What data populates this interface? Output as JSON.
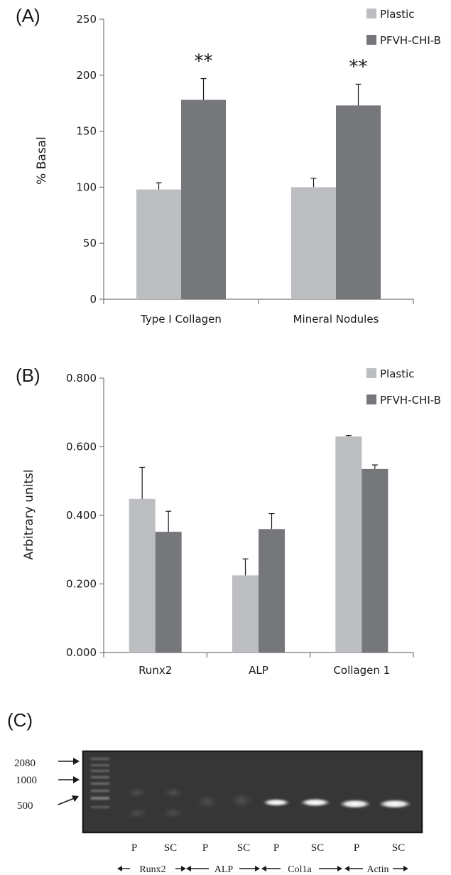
{
  "chart_data": [
    {
      "panel_label": "(A)",
      "type": "bar",
      "categories": [
        "Type I Collagen",
        "Mineral Nodules"
      ],
      "series": [
        {
          "name": "Plastic",
          "values": [
            98,
            100
          ],
          "errors": [
            6,
            8
          ]
        },
        {
          "name": "PFVH-CHI-B",
          "values": [
            178,
            173
          ],
          "errors": [
            19,
            19
          ]
        }
      ],
      "annotations": [
        "**",
        "**"
      ],
      "ylabel": "% Basal",
      "xlabel": "",
      "ylim": [
        0,
        250
      ],
      "yticks": [
        "0",
        "50",
        "100",
        "150",
        "200",
        "250"
      ],
      "legend_position": "top-right",
      "grid": false
    },
    {
      "panel_label": "(B)",
      "type": "bar",
      "categories": [
        "Runx2",
        "ALP",
        "Collagen 1"
      ],
      "series": [
        {
          "name": "Plastic",
          "values": [
            0.448,
            0.225,
            0.63
          ],
          "errors": [
            0.092,
            0.048,
            0.003
          ]
        },
        {
          "name": "PFVH-CHI-B",
          "values": [
            0.352,
            0.36,
            0.535
          ],
          "errors": [
            0.06,
            0.045,
            0.012
          ]
        }
      ],
      "ylabel": "Arbitrary  unitsl",
      "xlabel": "",
      "ylim": [
        0,
        0.8
      ],
      "yticks": [
        "0.000",
        "0.200",
        "0.400",
        "0.600",
        "0.800"
      ],
      "legend_position": "top-right",
      "grid": false
    }
  ],
  "colors": {
    "plastic": "#bdbec2",
    "pfvh": "#76777b",
    "axis": "#777777",
    "ink": "#1a1a1a"
  },
  "gel": {
    "panel_label": "(C)",
    "markers": [
      "2080",
      "1000",
      "500"
    ],
    "lanes": [
      "P",
      "SC",
      "P",
      "SC",
      "P",
      "SC",
      "P",
      "SC"
    ],
    "genes": [
      "Runx2",
      "ALP",
      "Col1a",
      "Actin"
    ]
  }
}
